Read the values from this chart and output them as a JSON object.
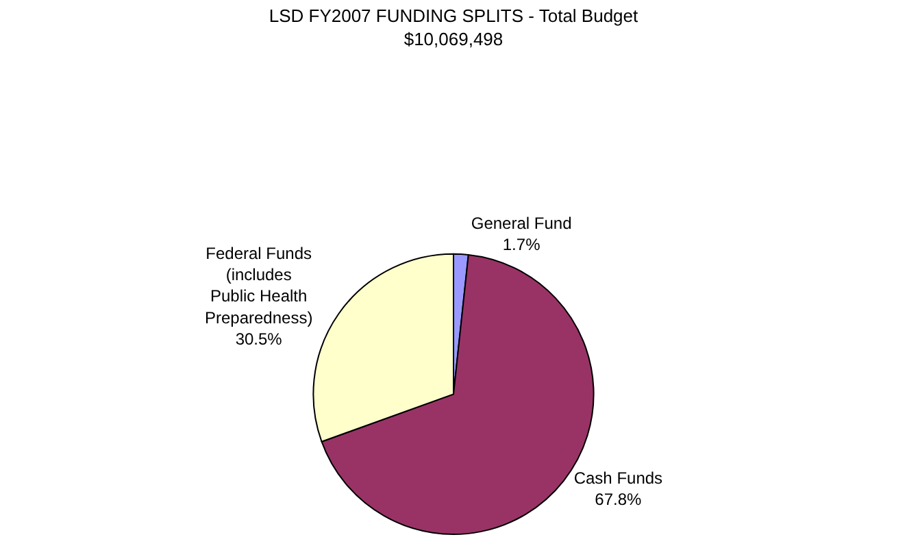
{
  "chart_data": {
    "type": "pie",
    "title": "LSD FY2007 FUNDING SPLITS - Total Budget",
    "subtitle": "$10,069,498",
    "categories": [
      "General Fund",
      "Cash Funds",
      "Federal Funds (includes Public Health Preparedness)"
    ],
    "values": [
      1.7,
      67.8,
      30.5
    ],
    "value_labels": [
      "1.7%",
      "67.8%",
      "30.5%"
    ],
    "colors": [
      "#9999ff",
      "#993366",
      "#ffffcc"
    ],
    "legend": false
  }
}
